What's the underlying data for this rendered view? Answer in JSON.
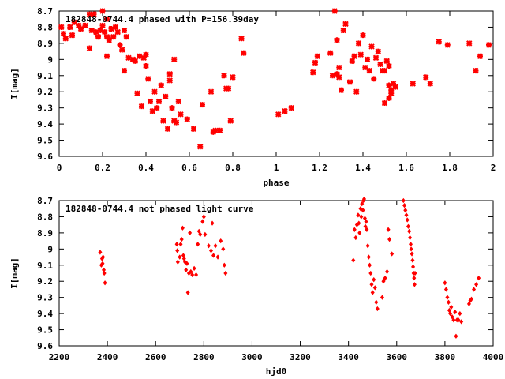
{
  "chart_data": [
    {
      "type": "scatter",
      "title": "182848-0744.4 phased with P=156.39day",
      "xlabel": "phase",
      "ylabel": "I[mag]",
      "xlim": [
        0,
        2
      ],
      "ylim": [
        8.7,
        9.6
      ],
      "y_inverted": true,
      "xticks": [
        0,
        0.2,
        0.4,
        0.6,
        0.8,
        1,
        1.2,
        1.4,
        1.6,
        1.8,
        2
      ],
      "xtick_labels": [
        "0",
        "0.2",
        "0.4",
        "0.6",
        "0.8",
        "1",
        "1.2",
        "1.4",
        "1.6",
        "1.8",
        "2"
      ],
      "yticks": [
        8.7,
        8.8,
        8.9,
        9.0,
        9.1,
        9.2,
        9.3,
        9.4,
        9.5,
        9.6
      ],
      "ytick_labels": [
        "8.7",
        "8.8",
        "8.9",
        "9",
        "9.1",
        "9.2",
        "9.3",
        "9.4",
        "9.5",
        "9.6"
      ],
      "marker": "cross",
      "color": "#ff0000",
      "points": [
        [
          0.01,
          8.8
        ],
        [
          0.02,
          8.84
        ],
        [
          0.03,
          8.87
        ],
        [
          0.05,
          8.8
        ],
        [
          0.06,
          8.85
        ],
        [
          0.07,
          8.77
        ],
        [
          0.09,
          8.79
        ],
        [
          0.1,
          8.81
        ],
        [
          0.12,
          8.79
        ],
        [
          0.14,
          8.72
        ],
        [
          0.15,
          8.82
        ],
        [
          0.16,
          8.72
        ],
        [
          0.17,
          8.83
        ],
        [
          0.18,
          8.86
        ],
        [
          0.19,
          8.82
        ],
        [
          0.2,
          8.79
        ],
        [
          0.2,
          8.7
        ],
        [
          0.21,
          8.83
        ],
        [
          0.22,
          8.75
        ],
        [
          0.22,
          8.86
        ],
        [
          0.23,
          8.88
        ],
        [
          0.24,
          8.81
        ],
        [
          0.25,
          8.86
        ],
        [
          0.26,
          8.8
        ],
        [
          0.27,
          8.83
        ],
        [
          0.28,
          8.91
        ],
        [
          0.29,
          8.94
        ],
        [
          0.3,
          8.82
        ],
        [
          0.31,
          8.86
        ],
        [
          0.14,
          8.93
        ],
        [
          0.22,
          8.98
        ],
        [
          0.3,
          9.07
        ],
        [
          0.32,
          8.99
        ],
        [
          0.34,
          9.0
        ],
        [
          0.35,
          9.01
        ],
        [
          0.36,
          9.21
        ],
        [
          0.37,
          8.98
        ],
        [
          0.38,
          9.29
        ],
        [
          0.39,
          8.99
        ],
        [
          0.4,
          8.97
        ],
        [
          0.4,
          9.04
        ],
        [
          0.41,
          9.12
        ],
        [
          0.42,
          9.26
        ],
        [
          0.43,
          9.32
        ],
        [
          0.44,
          9.2
        ],
        [
          0.45,
          9.3
        ],
        [
          0.46,
          9.26
        ],
        [
          0.47,
          9.16
        ],
        [
          0.48,
          9.38
        ],
        [
          0.49,
          9.23
        ],
        [
          0.5,
          9.43
        ],
        [
          0.51,
          9.09
        ],
        [
          0.51,
          9.13
        ],
        [
          0.52,
          9.3
        ],
        [
          0.53,
          9.0
        ],
        [
          0.53,
          9.38
        ],
        [
          0.54,
          9.39
        ],
        [
          0.55,
          9.26
        ],
        [
          0.56,
          9.34
        ],
        [
          0.59,
          9.37
        ],
        [
          0.62,
          9.43
        ],
        [
          0.65,
          9.54
        ],
        [
          0.66,
          9.28
        ],
        [
          0.7,
          9.2
        ],
        [
          0.71,
          9.45
        ],
        [
          0.72,
          9.44
        ],
        [
          0.74,
          9.44
        ],
        [
          0.76,
          9.1
        ],
        [
          0.77,
          9.18
        ],
        [
          0.78,
          9.18
        ],
        [
          0.8,
          9.11
        ],
        [
          0.84,
          8.87
        ],
        [
          0.85,
          8.96
        ],
        [
          0.79,
          9.38
        ],
        [
          1.01,
          9.34
        ],
        [
          1.04,
          9.32
        ],
        [
          1.07,
          9.3
        ],
        [
          1.17,
          9.08
        ],
        [
          1.18,
          9.02
        ],
        [
          1.19,
          8.98
        ],
        [
          1.25,
          8.96
        ],
        [
          1.26,
          9.1
        ],
        [
          1.27,
          8.7
        ],
        [
          1.28,
          9.09
        ],
        [
          1.28,
          8.88
        ],
        [
          1.29,
          9.05
        ],
        [
          1.29,
          9.11
        ],
        [
          1.3,
          9.19
        ],
        [
          1.31,
          8.82
        ],
        [
          1.32,
          8.78
        ],
        [
          1.34,
          9.14
        ],
        [
          1.35,
          9.01
        ],
        [
          1.36,
          8.98
        ],
        [
          1.37,
          9.2
        ],
        [
          1.38,
          8.9
        ],
        [
          1.39,
          8.97
        ],
        [
          1.4,
          8.85
        ],
        [
          1.41,
          9.05
        ],
        [
          1.42,
          9.0
        ],
        [
          1.43,
          9.07
        ],
        [
          1.44,
          8.92
        ],
        [
          1.45,
          9.12
        ],
        [
          1.46,
          8.99
        ],
        [
          1.47,
          8.95
        ],
        [
          1.48,
          9.03
        ],
        [
          1.49,
          9.07
        ],
        [
          1.5,
          9.07
        ],
        [
          1.5,
          9.27
        ],
        [
          1.51,
          9.01
        ],
        [
          1.52,
          9.16
        ],
        [
          1.52,
          9.24
        ],
        [
          1.53,
          9.21
        ],
        [
          1.53,
          9.19
        ],
        [
          1.54,
          9.15
        ],
        [
          1.55,
          9.17
        ],
        [
          1.52,
          9.04
        ],
        [
          1.63,
          9.15
        ],
        [
          1.69,
          9.11
        ],
        [
          1.71,
          9.15
        ],
        [
          1.75,
          8.89
        ],
        [
          1.79,
          8.91
        ],
        [
          1.89,
          8.9
        ],
        [
          1.92,
          9.07
        ],
        [
          1.94,
          8.98
        ],
        [
          1.98,
          8.91
        ]
      ]
    },
    {
      "type": "scatter",
      "title": "182848-0744.4 not phased light curve",
      "xlabel": "hjd0",
      "ylabel": "I[mag]",
      "xlim": [
        2200,
        4000
      ],
      "ylim": [
        8.7,
        9.6
      ],
      "y_inverted": true,
      "xticks": [
        2200,
        2400,
        2600,
        2800,
        3000,
        3200,
        3400,
        3600,
        3800,
        4000
      ],
      "xtick_labels": [
        "2200",
        "2400",
        "2600",
        "2800",
        "3000",
        "3200",
        "3400",
        "3600",
        "3800",
        "4000"
      ],
      "yticks": [
        8.7,
        8.8,
        8.9,
        9.0,
        9.1,
        9.2,
        9.3,
        9.4,
        9.5,
        9.6
      ],
      "ytick_labels": [
        "8.7",
        "8.8",
        "8.9",
        "9",
        "9.1",
        "9.2",
        "9.3",
        "9.4",
        "9.5",
        "9.6"
      ],
      "marker": "diamond",
      "color": "#ff0000",
      "points": [
        [
          2370,
          9.02
        ],
        [
          2375,
          9.1
        ],
        [
          2378,
          9.06
        ],
        [
          2380,
          9.09
        ],
        [
          2382,
          9.05
        ],
        [
          2385,
          9.13
        ],
        [
          2387,
          9.15
        ],
        [
          2390,
          9.21
        ],
        [
          2688,
          8.97
        ],
        [
          2690,
          9.01
        ],
        [
          2692,
          9.08
        ],
        [
          2700,
          9.05
        ],
        [
          2704,
          8.97
        ],
        [
          2708,
          8.94
        ],
        [
          2712,
          8.87
        ],
        [
          2715,
          9.04
        ],
        [
          2718,
          9.06
        ],
        [
          2722,
          9.08
        ],
        [
          2726,
          9.13
        ],
        [
          2730,
          9.09
        ],
        [
          2734,
          9.27
        ],
        [
          2738,
          9.15
        ],
        [
          2742,
          8.9
        ],
        [
          2746,
          9.14
        ],
        [
          2752,
          9.16
        ],
        [
          2760,
          9.12
        ],
        [
          2768,
          9.16
        ],
        [
          2775,
          8.97
        ],
        [
          2780,
          8.89
        ],
        [
          2785,
          8.91
        ],
        [
          2795,
          8.83
        ],
        [
          2800,
          8.8
        ],
        [
          2805,
          8.91
        ],
        [
          2820,
          8.98
        ],
        [
          2830,
          9.01
        ],
        [
          2835,
          8.84
        ],
        [
          2840,
          9.04
        ],
        [
          2848,
          8.98
        ],
        [
          2858,
          9.05
        ],
        [
          2870,
          8.95
        ],
        [
          2880,
          9.0
        ],
        [
          2885,
          9.1
        ],
        [
          2890,
          9.15
        ],
        [
          3420,
          9.07
        ],
        [
          3425,
          8.88
        ],
        [
          3430,
          8.93
        ],
        [
          3435,
          8.85
        ],
        [
          3440,
          8.79
        ],
        [
          3443,
          8.84
        ],
        [
          3446,
          8.9
        ],
        [
          3450,
          8.75
        ],
        [
          3453,
          8.8
        ],
        [
          3456,
          8.72
        ],
        [
          3460,
          8.76
        ],
        [
          3462,
          8.7
        ],
        [
          3465,
          8.69
        ],
        [
          3468,
          8.81
        ],
        [
          3470,
          8.86
        ],
        [
          3473,
          8.83
        ],
        [
          3476,
          8.88
        ],
        [
          3480,
          8.98
        ],
        [
          3484,
          9.05
        ],
        [
          3488,
          9.1
        ],
        [
          3492,
          9.15
        ],
        [
          3496,
          9.22
        ],
        [
          3500,
          9.27
        ],
        [
          3505,
          9.19
        ],
        [
          3510,
          9.24
        ],
        [
          3515,
          9.33
        ],
        [
          3520,
          9.37
        ],
        [
          3540,
          9.3
        ],
        [
          3545,
          9.2
        ],
        [
          3548,
          9.19
        ],
        [
          3552,
          9.18
        ],
        [
          3560,
          9.14
        ],
        [
          3565,
          8.88
        ],
        [
          3570,
          8.94
        ],
        [
          3580,
          9.03
        ],
        [
          3628,
          8.7
        ],
        [
          3632,
          8.73
        ],
        [
          3636,
          8.76
        ],
        [
          3640,
          8.79
        ],
        [
          3644,
          8.82
        ],
        [
          3648,
          8.86
        ],
        [
          3652,
          8.89
        ],
        [
          3655,
          8.93
        ],
        [
          3658,
          8.97
        ],
        [
          3660,
          9.0
        ],
        [
          3663,
          9.03
        ],
        [
          3666,
          9.07
        ],
        [
          3668,
          9.11
        ],
        [
          3670,
          9.15
        ],
        [
          3672,
          9.18
        ],
        [
          3674,
          9.22
        ],
        [
          3676,
          9.15
        ],
        [
          3800,
          9.21
        ],
        [
          3805,
          9.25
        ],
        [
          3810,
          9.3
        ],
        [
          3815,
          9.33
        ],
        [
          3818,
          9.38
        ],
        [
          3822,
          9.4
        ],
        [
          3826,
          9.36
        ],
        [
          3830,
          9.42
        ],
        [
          3836,
          9.44
        ],
        [
          3842,
          9.39
        ],
        [
          3846,
          9.54
        ],
        [
          3850,
          9.44
        ],
        [
          3856,
          9.44
        ],
        [
          3862,
          9.4
        ],
        [
          3868,
          9.45
        ],
        [
          3900,
          9.34
        ],
        [
          3905,
          9.32
        ],
        [
          3910,
          9.31
        ],
        [
          3920,
          9.25
        ],
        [
          3930,
          9.22
        ],
        [
          3940,
          9.18
        ]
      ]
    }
  ]
}
